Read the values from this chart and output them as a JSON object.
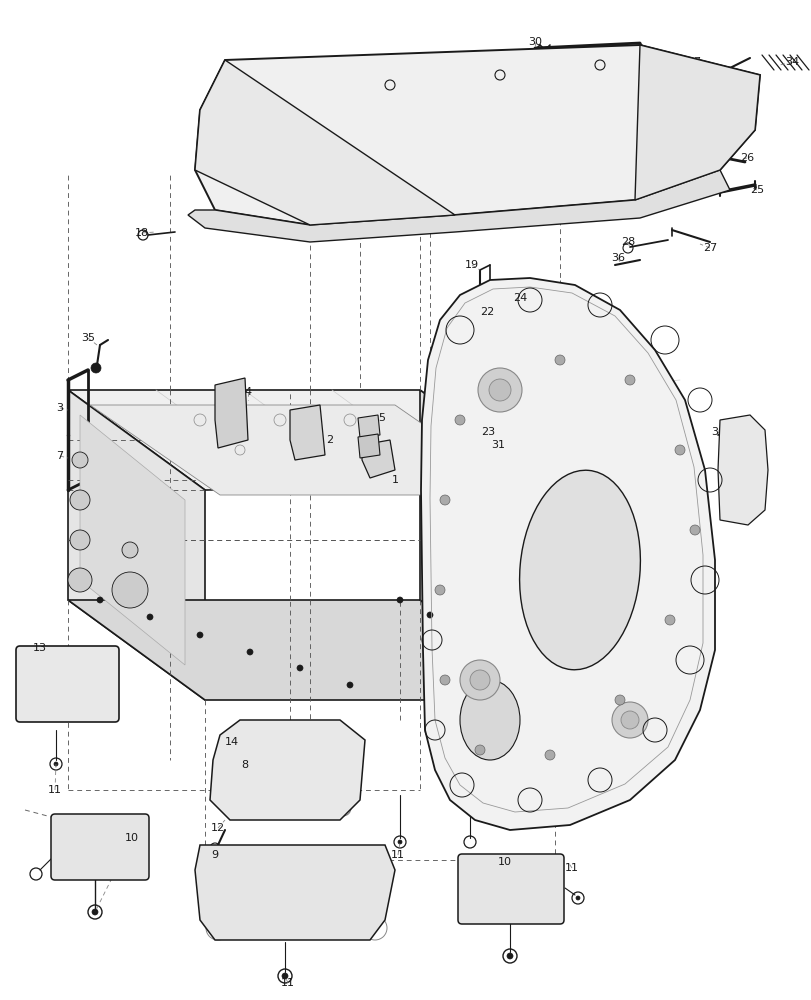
{
  "background_color": "#ffffff",
  "line_color": "#1a1a1a",
  "text_color": "#1a1a1a",
  "fig_width": 8.12,
  "fig_height": 10.0,
  "dpi": 100
}
